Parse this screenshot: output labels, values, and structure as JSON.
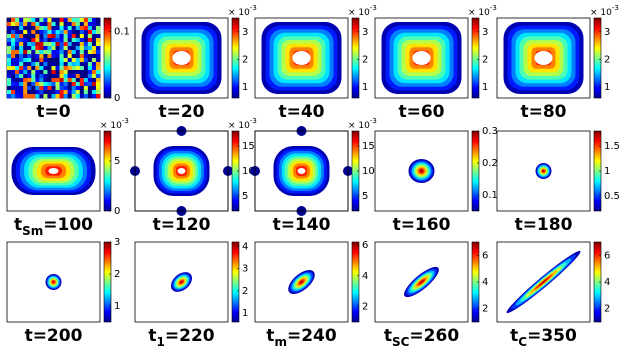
{
  "panels": [
    {
      "label": [
        "t=0"
      ],
      "cbar_lim": [
        0,
        0.12
      ],
      "cbar_ticks": [
        0,
        0.1
      ]
    },
    {
      "label": [
        "t=20"
      ],
      "multiplier": [
        "× 10",
        "-3"
      ],
      "cbar_lim": [
        0.6,
        3.5
      ],
      "cbar_ticks": [
        1,
        2,
        3
      ]
    },
    {
      "label": [
        "t=40"
      ],
      "multiplier": [
        "× 10",
        "-3"
      ],
      "cbar_lim": [
        0.6,
        3.5
      ],
      "cbar_ticks": [
        1,
        2,
        3
      ]
    },
    {
      "label": [
        "t=60"
      ],
      "multiplier": [
        "× 10",
        "-3"
      ],
      "cbar_lim": [
        0.6,
        3.5
      ],
      "cbar_ticks": [
        1,
        2,
        3
      ]
    },
    {
      "label": [
        "t=80"
      ],
      "multiplier": [
        "× 10",
        "-3"
      ],
      "cbar_lim": [
        0.6,
        3.5
      ],
      "cbar_ticks": [
        1,
        2,
        3
      ]
    },
    {
      "label": [
        "t",
        "Sm",
        "=100"
      ],
      "multiplier": [
        "× 10",
        "-3"
      ],
      "cbar_lim": [
        0,
        8
      ],
      "cbar_ticks": [
        0,
        5
      ]
    },
    {
      "label": [
        "t=120"
      ],
      "multiplier": [
        "× 10",
        "-3"
      ],
      "cbar_lim": [
        2,
        18
      ],
      "cbar_ticks": [
        5,
        10,
        15
      ]
    },
    {
      "label": [
        "t=140"
      ],
      "multiplier": [
        "× 10",
        "-3"
      ],
      "cbar_lim": [
        2,
        18
      ],
      "cbar_ticks": [
        5,
        10,
        15
      ]
    },
    {
      "label": [
        "t=160"
      ],
      "cbar_lim": [
        0.05,
        0.3
      ],
      "cbar_ticks": [
        0.1,
        0.2,
        0.3
      ]
    },
    {
      "label": [
        "t=180"
      ],
      "cbar_lim": [
        0.2,
        1.8
      ],
      "cbar_ticks": [
        0.5,
        1,
        1.5
      ]
    },
    {
      "label": [
        "t=200"
      ],
      "cbar_lim": [
        0.5,
        3
      ],
      "cbar_ticks": [
        1,
        2,
        3
      ]
    },
    {
      "label": [
        "t",
        "1",
        "=220"
      ],
      "cbar_lim": [
        0.6,
        4.2
      ],
      "cbar_ticks": [
        1,
        2,
        3,
        4
      ]
    },
    {
      "label": [
        "t",
        "m",
        "=240"
      ],
      "cbar_lim": [
        1,
        6.2
      ],
      "cbar_ticks": [
        2,
        4,
        6
      ]
    },
    {
      "label": [
        "t",
        "SC",
        "=260"
      ],
      "cbar_lim": [
        1,
        7
      ],
      "cbar_ticks": [
        2,
        4,
        6
      ]
    },
    {
      "label": [
        "t",
        "C",
        "=350"
      ],
      "cbar_lim": [
        1,
        7
      ],
      "cbar_ticks": [
        2,
        4,
        6
      ]
    }
  ]
}
